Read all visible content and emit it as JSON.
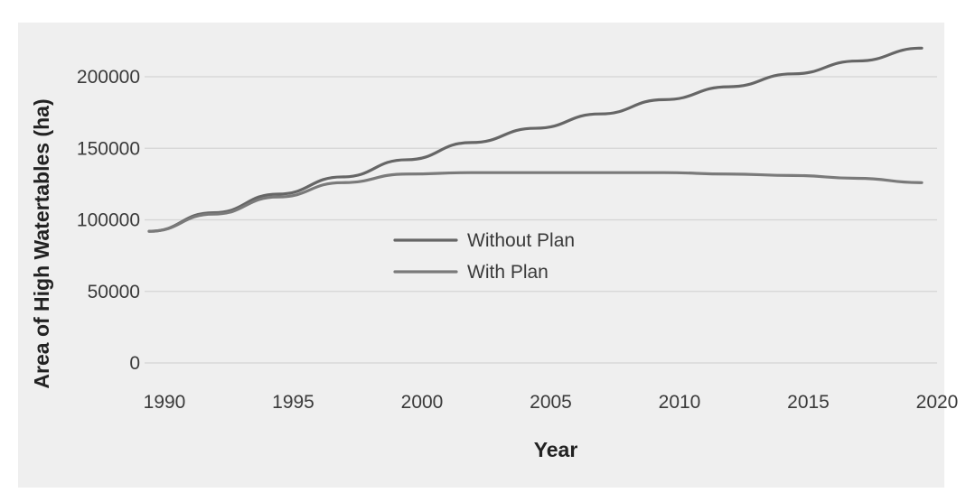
{
  "chart_data": {
    "type": "line",
    "title": "",
    "xlabel": "Year",
    "ylabel": "Area of High Watertables (ha)",
    "x": [
      1990,
      1992.5,
      1995,
      1997.5,
      2000,
      2002.5,
      2005,
      2007.5,
      2010,
      2012.5,
      2015,
      2017.5,
      2020
    ],
    "xlim": [
      1990,
      2020
    ],
    "ylim": [
      0,
      200000
    ],
    "xticks": [
      "1990",
      "1995",
      "2000",
      "2005",
      "2010",
      "2015",
      "2020"
    ],
    "yticks": [
      "0",
      "50000",
      "100000",
      "150000",
      "200000"
    ],
    "grid": true,
    "legend_position": "center",
    "series": [
      {
        "name": "Without Plan",
        "color": "#666666",
        "values": [
          92000,
          105000,
          118000,
          130000,
          142000,
          154000,
          164000,
          174000,
          184000,
          193000,
          202000,
          211000,
          220000
        ]
      },
      {
        "name": "With Plan",
        "color": "#7a7a7a",
        "values": [
          92000,
          104000,
          116000,
          126000,
          132000,
          133000,
          133000,
          133000,
          133000,
          132000,
          131000,
          129000,
          126000
        ]
      }
    ]
  },
  "colors": {
    "plot_background": "#efefef",
    "gridline": "#d4d4d4"
  }
}
